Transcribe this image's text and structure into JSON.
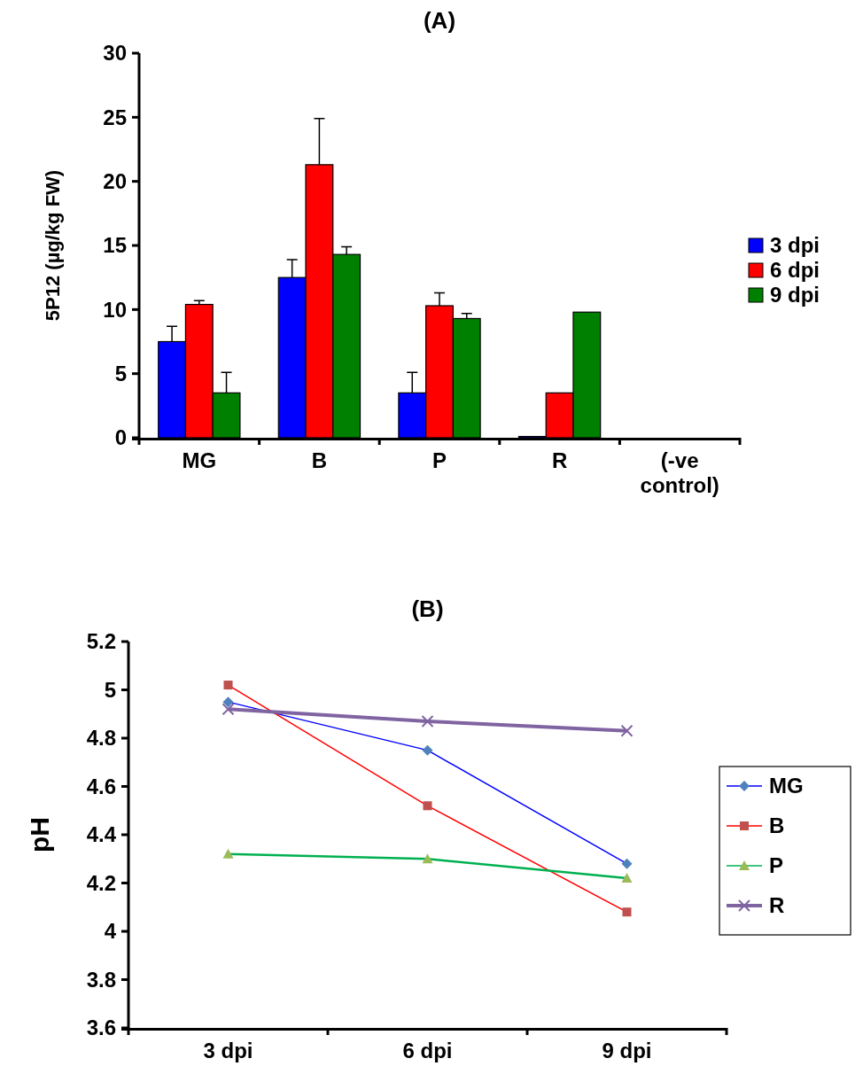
{
  "chart_data": [
    {
      "type": "bar",
      "title": "(A)",
      "ylabel": "5P12 (µg/kg FW)",
      "categories": [
        "MG",
        "B",
        "P",
        "R",
        "(-ve control)"
      ],
      "ylim": [
        0,
        30
      ],
      "yticks": [
        0,
        5,
        10,
        15,
        20,
        25,
        30
      ],
      "legend": "right",
      "grid": false,
      "series": [
        {
          "name": "3 dpi",
          "color": "#0000ff",
          "values": [
            7.5,
            12.5,
            3.5,
            0.1,
            0
          ],
          "errors": [
            [
              7.5,
              8.7
            ],
            [
              12.5,
              13.9
            ],
            [
              3.5,
              5.1
            ],
            null,
            null
          ]
        },
        {
          "name": "6 dpi",
          "color": "#ff0000",
          "values": [
            10.4,
            21.3,
            10.3,
            3.5,
            0
          ],
          "errors": [
            [
              10.4,
              10.7
            ],
            [
              21.3,
              24.9
            ],
            [
              10.3,
              11.3
            ],
            null,
            null
          ]
        },
        {
          "name": "9 dpi",
          "color": "#008000",
          "values": [
            3.5,
            14.3,
            9.3,
            9.8,
            0
          ],
          "errors": [
            [
              3.5,
              5.1
            ],
            [
              14.3,
              14.9
            ],
            [
              9.3,
              9.7
            ],
            null,
            null
          ]
        }
      ]
    },
    {
      "type": "line",
      "title": "(B)",
      "ylabel": "pH",
      "categories": [
        "3 dpi",
        "6 dpi",
        "9 dpi"
      ],
      "ylim": [
        3.6,
        5.2
      ],
      "yticks": [
        3.6,
        3.8,
        4,
        4.2,
        4.4,
        4.6,
        4.8,
        5,
        5.2
      ],
      "legend": "right",
      "grid": false,
      "series": [
        {
          "name": "MG",
          "color": "#0000ff",
          "marker": "diamond",
          "values": [
            4.95,
            4.75,
            4.28
          ]
        },
        {
          "name": "B",
          "color": "#ff0000",
          "marker": "square",
          "values": [
            5.02,
            4.52,
            4.08
          ]
        },
        {
          "name": "P",
          "color": "#00b050",
          "marker": "triangle",
          "values": [
            4.32,
            4.3,
            4.22
          ]
        },
        {
          "name": "R",
          "color": "#8064a2",
          "marker": "cross",
          "values": [
            4.92,
            4.87,
            4.83
          ]
        }
      ]
    }
  ]
}
